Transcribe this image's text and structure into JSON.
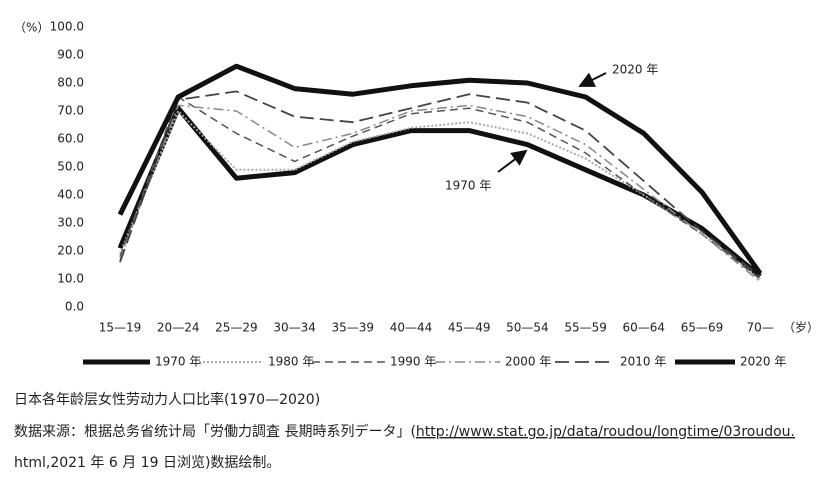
{
  "chart_data": {
    "type": "line",
    "ylabel": "（%）",
    "xlabel": "（岁）",
    "categories": [
      "15—19",
      "20—24",
      "25—29",
      "30—34",
      "35—39",
      "40—44",
      "45—49",
      "50—54",
      "55—59",
      "60—64",
      "65—69",
      "70—"
    ],
    "ylim": [
      0,
      100
    ],
    "yticks": [
      {
        "value": 0,
        "label": "0.0"
      },
      {
        "value": 10,
        "label": "10.0"
      },
      {
        "value": 20,
        "label": "20.0"
      },
      {
        "value": 30,
        "label": "30.0"
      },
      {
        "value": 40,
        "label": "40.0"
      },
      {
        "value": 50,
        "label": "50.0"
      },
      {
        "value": 60,
        "label": "60.0"
      },
      {
        "value": 70,
        "label": "70.0"
      },
      {
        "value": 80,
        "label": "80.0"
      },
      {
        "value": 90,
        "label": "90.0"
      },
      {
        "value": 100,
        "label": "100.0"
      }
    ],
    "series": [
      {
        "name": "1970 年",
        "color": "#111111",
        "dash": "solid",
        "width": 5,
        "values": [
          21,
          71,
          46,
          48,
          58,
          63,
          63,
          58,
          49,
          40,
          28,
          11
        ]
      },
      {
        "name": "1980 年",
        "color": "#aaaaaa",
        "dash": "dotted",
        "width": 2,
        "values": [
          19,
          70,
          49,
          49,
          59,
          64,
          66,
          62,
          53,
          40,
          26,
          10
        ]
      },
      {
        "name": "1990 年",
        "color": "#555555",
        "dash": "dashed",
        "width": 1.5,
        "values": [
          18,
          75,
          62,
          52,
          61,
          69,
          71,
          66,
          55,
          40,
          26,
          10
        ]
      },
      {
        "name": "2000 年",
        "color": "#888888",
        "dash": "dashdot",
        "width": 1.5,
        "values": [
          17,
          72,
          70,
          57,
          62,
          70,
          72,
          68,
          58,
          42,
          26,
          9
        ]
      },
      {
        "name": "2010 年",
        "color": "#444444",
        "dash": "longdash",
        "width": 1.8,
        "values": [
          16,
          74,
          77,
          68,
          66,
          71,
          76,
          73,
          63,
          45,
          27,
          11
        ]
      },
      {
        "name": "2020 年",
        "color": "#111111",
        "dash": "solid",
        "width": 5,
        "values": [
          33,
          75,
          86,
          78,
          76,
          79,
          81,
          80,
          75,
          62,
          41,
          12
        ]
      }
    ],
    "annotations": [
      "2020 年",
      "1970 年"
    ],
    "caption": "日本各年龄层女性劳动力人口比率(1970—2020)",
    "source": [
      "数据来源：根据总务省统计局「労働力調査 長期時系列データ」(",
      "http://www.stat.go.jp/data/roudou/longtime/03roudou.",
      "html,2021 年 6 月 19 日浏览)数据绘制。"
    ]
  }
}
